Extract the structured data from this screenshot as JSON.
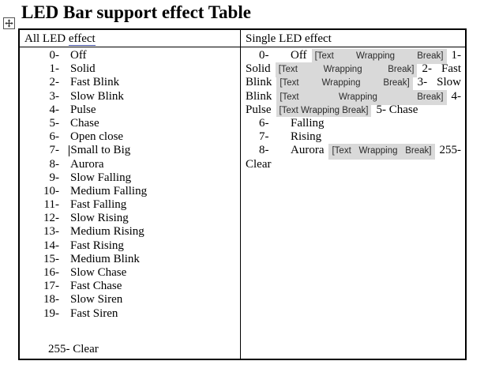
{
  "title": "LED Bar support effect Table",
  "icons": {
    "table_move_handle": "move-icon",
    "item_7_cursor": "text-cursor"
  },
  "colors": {
    "highlight_bg": "#d9d9d9",
    "effect_underline": "#4350a5",
    "border": "#000000",
    "text": "#000000"
  },
  "table": {
    "left_header": {
      "text": "All LED ",
      "underlined_word": "effect"
    },
    "right_header": "Single LED effect",
    "all_led_effects": [
      {
        "num": "0-",
        "label": "Off"
      },
      {
        "num": "1-",
        "label": "Solid"
      },
      {
        "num": "2-",
        "label": "Fast Blink"
      },
      {
        "num": "3-",
        "label": "Slow Blink"
      },
      {
        "num": "4-",
        "label": "Pulse"
      },
      {
        "num": "5-",
        "label": "Chase"
      },
      {
        "num": "6-",
        "label": "Open close"
      },
      {
        "num": "7-",
        "label": "Small to Big",
        "has_text_cursor": true
      },
      {
        "num": "8-",
        "label": "Aurora"
      },
      {
        "num": "9-",
        "label": "Slow Falling"
      },
      {
        "num": "10-",
        "label": "Medium Falling"
      },
      {
        "num": "11-",
        "label": "Fast Falling"
      },
      {
        "num": "12-",
        "label": "Slow Rising"
      },
      {
        "num": "13-",
        "label": "Medium Rising"
      },
      {
        "num": "14-",
        "label": "Fast Rising"
      },
      {
        "num": "15-",
        "label": "Medium Blink"
      },
      {
        "num": "16-",
        "label": "Slow Chase"
      },
      {
        "num": "17-",
        "label": "Fast Chase"
      },
      {
        "num": "18-",
        "label": "Slow Siren"
      },
      {
        "num": "19-",
        "label": "Fast Siren"
      }
    ],
    "all_led_clear": "255- Clear",
    "wrap_break_label": "[Text Wrapping Break]",
    "single_led_lines": [
      {
        "justify": true,
        "indent": true,
        "segments": [
          {
            "type": "num",
            "t": "0-"
          },
          {
            "type": "text",
            "t": "Off"
          },
          {
            "type": "hl",
            "words": [
              "[Text",
              "Wrapping",
              "Break]"
            ]
          },
          {
            "type": "text",
            "t": "1-"
          }
        ]
      },
      {
        "justify": true,
        "segments": [
          {
            "type": "text",
            "t": "Solid"
          },
          {
            "type": "hl",
            "words": [
              "[Text",
              "Wrapping",
              "Break]"
            ]
          },
          {
            "type": "text",
            "t": "2-"
          },
          {
            "type": "text",
            "t": "Fast"
          }
        ]
      },
      {
        "justify": true,
        "segments": [
          {
            "type": "text",
            "t": "Blink"
          },
          {
            "type": "hl",
            "words": [
              "[Text",
              "Wrapping",
              "Break]"
            ]
          },
          {
            "type": "text",
            "t": "3-"
          },
          {
            "type": "text",
            "t": "Slow"
          }
        ]
      },
      {
        "justify": true,
        "segments": [
          {
            "type": "text",
            "t": "Blink"
          },
          {
            "type": "hl",
            "words": [
              "[Text",
              "Wrapping",
              "Break]"
            ]
          },
          {
            "type": "text",
            "t": "4-"
          }
        ]
      },
      {
        "segments": [
          {
            "type": "text",
            "t": "Pulse"
          },
          {
            "type": "hl",
            "compact": true,
            "words": [
              "[Text",
              "Wrapping",
              "Break]"
            ]
          },
          {
            "type": "text",
            "t": "5- Chase"
          }
        ]
      },
      {
        "indent": true,
        "segments": [
          {
            "type": "num",
            "t": "6-"
          },
          {
            "type": "text",
            "t": "Falling"
          }
        ]
      },
      {
        "indent": true,
        "segments": [
          {
            "type": "num",
            "t": "7-"
          },
          {
            "type": "text",
            "t": "Rising"
          }
        ]
      },
      {
        "justify": true,
        "indent": true,
        "segments": [
          {
            "type": "num",
            "t": "8-"
          },
          {
            "type": "text",
            "t": "Aurora"
          },
          {
            "type": "hl",
            "words": [
              "[Text",
              "Wrapping",
              "Break]"
            ]
          },
          {
            "type": "text",
            "t": "255-"
          }
        ]
      },
      {
        "segments": [
          {
            "type": "text",
            "t": "Clear"
          }
        ]
      }
    ]
  }
}
